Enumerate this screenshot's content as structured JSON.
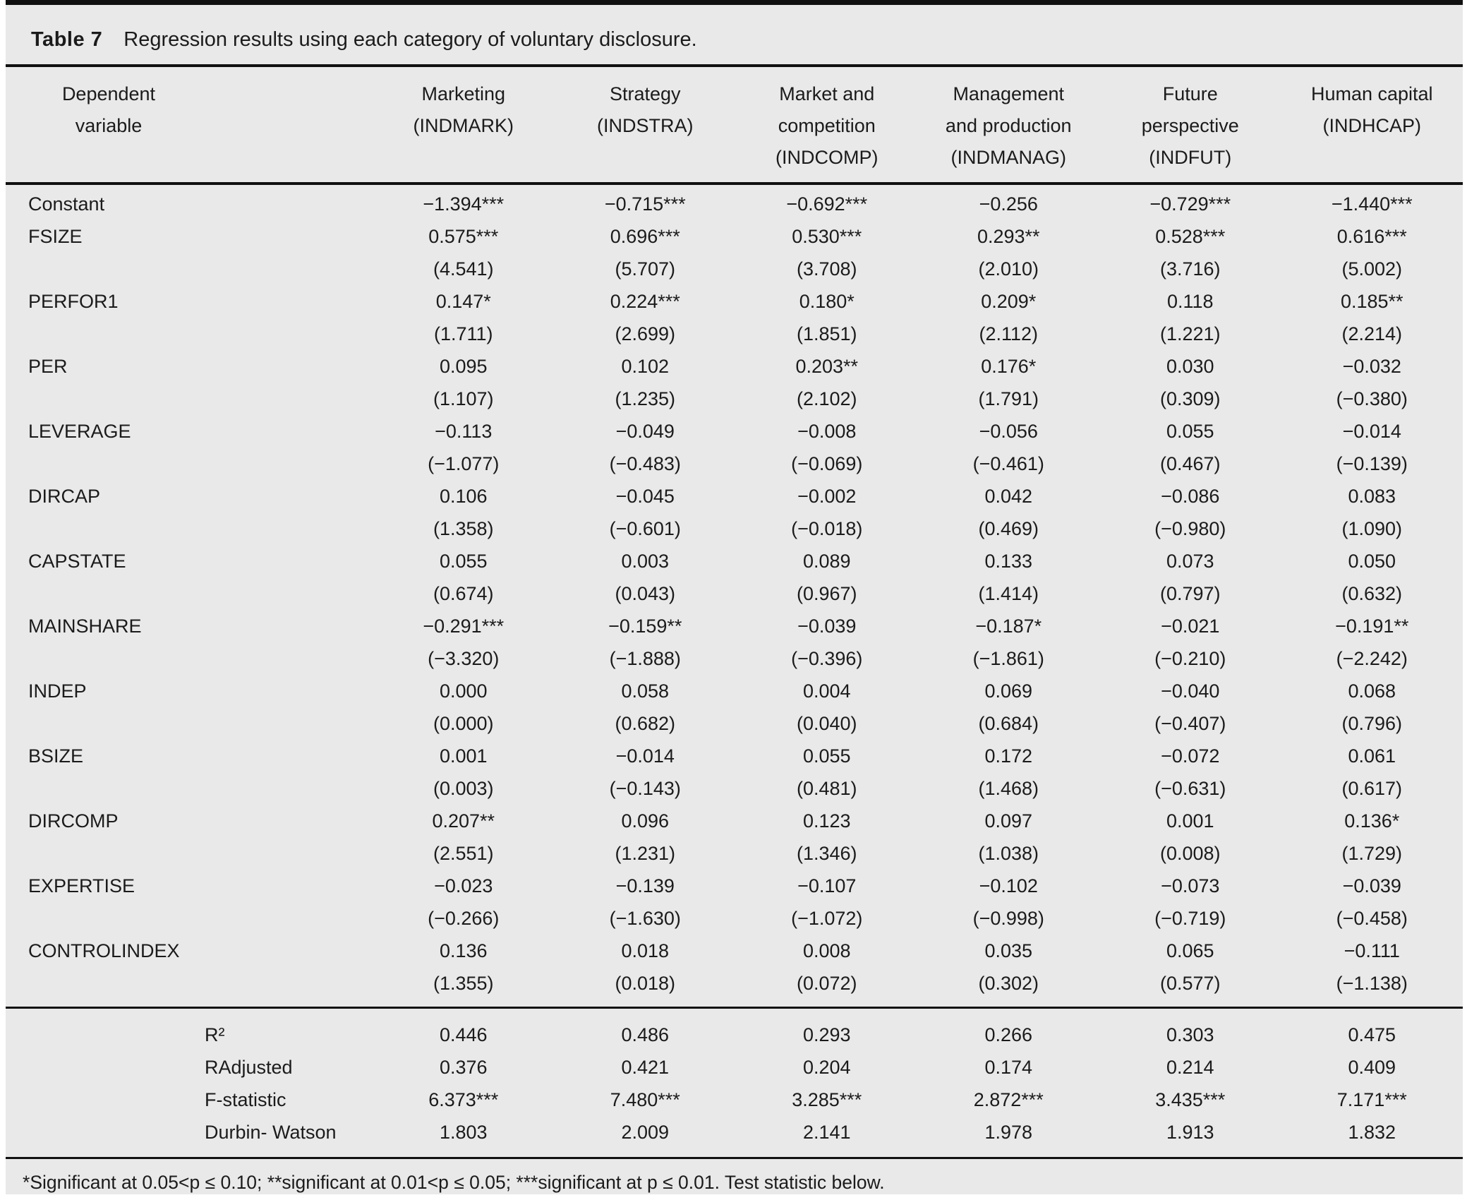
{
  "title": {
    "label": "Table 7",
    "text": "Regression results using each category of voluntary disclosure."
  },
  "table": {
    "header": {
      "row_label_lines": [
        "Dependent",
        "variable"
      ],
      "columns": [
        {
          "name": "Marketing (INDMARK)",
          "lines": [
            "Marketing",
            "(INDMARK)"
          ]
        },
        {
          "name": "Strategy (INDSTRA)",
          "lines": [
            "Strategy",
            "(INDSTRA)"
          ]
        },
        {
          "name": "Market and competition (INDCOMP)",
          "lines": [
            "Market and",
            "competition",
            "(INDCOMP)"
          ]
        },
        {
          "name": "Management and production (INDMANAG)",
          "lines": [
            "Management",
            "and production",
            "(INDMANAG)"
          ]
        },
        {
          "name": "Future perspective (INDFUT)",
          "lines": [
            "Future",
            "perspective",
            "(INDFUT)"
          ]
        },
        {
          "name": "Human capital (INDHCAP)",
          "lines": [
            "Human capital",
            "(INDHCAP)"
          ]
        }
      ]
    },
    "rows": [
      {
        "variable": "Constant",
        "coefficients": [
          "−1.394***",
          "−0.715***",
          "−0.692***",
          "−0.256",
          "−0.729***",
          "−1.440***"
        ],
        "t_statistics": null
      },
      {
        "variable": "FSIZE",
        "coefficients": [
          "0.575***",
          "0.696***",
          "0.530***",
          "0.293**",
          "0.528***",
          "0.616***"
        ],
        "t_statistics": [
          "(4.541)",
          "(5.707)",
          "(3.708)",
          "(2.010)",
          "(3.716)",
          "(5.002)"
        ]
      },
      {
        "variable": "PERFOR1",
        "coefficients": [
          "0.147*",
          "0.224***",
          "0.180*",
          "0.209*",
          "0.118",
          "0.185**"
        ],
        "t_statistics": [
          "(1.711)",
          "(2.699)",
          "(1.851)",
          "(2.112)",
          "(1.221)",
          "(2.214)"
        ]
      },
      {
        "variable": "PER",
        "coefficients": [
          "0.095",
          "0.102",
          "0.203**",
          "0.176*",
          "0.030",
          "−0.032"
        ],
        "t_statistics": [
          "(1.107)",
          "(1.235)",
          "(2.102)",
          "(1.791)",
          "(0.309)",
          "(−0.380)"
        ]
      },
      {
        "variable": "LEVERAGE",
        "coefficients": [
          "−0.113",
          "−0.049",
          "−0.008",
          "−0.056",
          "0.055",
          "−0.014"
        ],
        "t_statistics": [
          "(−1.077)",
          "(−0.483)",
          "(−0.069)",
          "(−0.461)",
          "(0.467)",
          "(−0.139)"
        ]
      },
      {
        "variable": "DIRCAP",
        "coefficients": [
          "0.106",
          "−0.045",
          "−0.002",
          "0.042",
          "−0.086",
          "0.083"
        ],
        "t_statistics": [
          "(1.358)",
          "(−0.601)",
          "(−0.018)",
          "(0.469)",
          "(−0.980)",
          "(1.090)"
        ]
      },
      {
        "variable": "CAPSTATE",
        "coefficients": [
          "0.055",
          "0.003",
          "0.089",
          "0.133",
          "0.073",
          "0.050"
        ],
        "t_statistics": [
          "(0.674)",
          "(0.043)",
          "(0.967)",
          "(1.414)",
          "(0.797)",
          "(0.632)"
        ]
      },
      {
        "variable": "MAINSHARE",
        "coefficients": [
          "−0.291***",
          "−0.159**",
          "−0.039",
          "−0.187*",
          "−0.021",
          "−0.191**"
        ],
        "t_statistics": [
          "(−3.320)",
          "(−1.888)",
          "(−0.396)",
          "(−1.861)",
          "(−0.210)",
          "(−2.242)"
        ]
      },
      {
        "variable": "INDEP",
        "coefficients": [
          "0.000",
          "0.058",
          "0.004",
          "0.069",
          "−0.040",
          "0.068"
        ],
        "t_statistics": [
          "(0.000)",
          "(0.682)",
          "(0.040)",
          "(0.684)",
          "(−0.407)",
          "(0.796)"
        ]
      },
      {
        "variable": "BSIZE",
        "coefficients": [
          "0.001",
          "−0.014",
          "0.055",
          "0.172",
          "−0.072",
          "0.061"
        ],
        "t_statistics": [
          "(0.003)",
          "(−0.143)",
          "(0.481)",
          "(1.468)",
          "(−0.631)",
          "(0.617)"
        ]
      },
      {
        "variable": "DIRCOMP",
        "coefficients": [
          "0.207**",
          "0.096",
          "0.123",
          "0.097",
          "0.001",
          "0.136*"
        ],
        "t_statistics": [
          "(2.551)",
          "(1.231)",
          "(1.346)",
          "(1.038)",
          "(0.008)",
          "(1.729)"
        ]
      },
      {
        "variable": "EXPERTISE",
        "coefficients": [
          "−0.023",
          "−0.139",
          "−0.107",
          "−0.102",
          "−0.073",
          "−0.039"
        ],
        "t_statistics": [
          "(−0.266)",
          "(−1.630)",
          "(−1.072)",
          "(−0.998)",
          "(−0.719)",
          "(−0.458)"
        ]
      },
      {
        "variable": "CONTROLINDEX",
        "coefficients": [
          "0.136",
          "0.018",
          "0.008",
          "0.035",
          "0.065",
          "−0.111"
        ],
        "t_statistics": [
          "(1.355)",
          "(0.018)",
          "(0.072)",
          "(0.302)",
          "(0.577)",
          "(−1.138)"
        ]
      }
    ],
    "summary": [
      {
        "label": "R²",
        "values": [
          "0.446",
          "0.486",
          "0.293",
          "0.266",
          "0.303",
          "0.475"
        ]
      },
      {
        "label": "RAdjusted",
        "values": [
          "0.376",
          "0.421",
          "0.204",
          "0.174",
          "0.214",
          "0.409"
        ]
      },
      {
        "label": "F-statistic",
        "values": [
          "6.373***",
          "7.480***",
          "3.285***",
          "2.872***",
          "3.435***",
          "7.171***"
        ]
      },
      {
        "label": "Durbin- Watson",
        "values": [
          "1.803",
          "2.009",
          "2.141",
          "1.978",
          "1.913",
          "1.832"
        ]
      }
    ]
  },
  "footnote": "*Significant at 0.05<p ≤ 0.10; **significant at 0.01<p ≤ 0.05; ***significant at p ≤ 0.01. Test statistic below."
}
